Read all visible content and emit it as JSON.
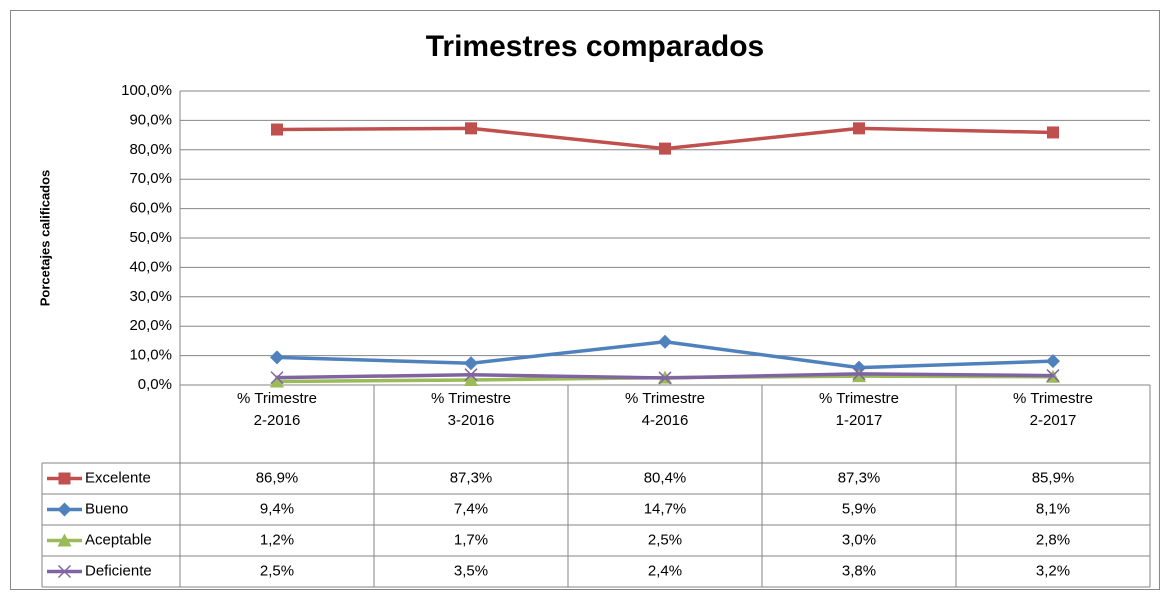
{
  "chart_data": {
    "type": "line",
    "title": "Trimestres comparados",
    "y_label": "Porcetajes calificados",
    "categories": [
      "% Trimestre 2-2016",
      "% Trimestre 3-2016",
      "% Trimestre 4-2016",
      "% Trimestre 1-2017",
      "% Trimestre 2-2017"
    ],
    "series": [
      {
        "name": "Excelente",
        "color": "#c0504d",
        "marker": "square",
        "values": [
          86.9,
          87.3,
          80.4,
          87.3,
          85.9
        ],
        "value_labels": [
          "86,9%",
          "87,3%",
          "80,4%",
          "87,3%",
          "85,9%"
        ]
      },
      {
        "name": "Bueno",
        "color": "#4f81bd",
        "marker": "diamond",
        "values": [
          9.4,
          7.4,
          14.7,
          5.9,
          8.1
        ],
        "value_labels": [
          "9,4%",
          "7,4%",
          "14,7%",
          "5,9%",
          "8,1%"
        ]
      },
      {
        "name": "Aceptable",
        "color": "#9bbb59",
        "marker": "triangle",
        "values": [
          1.2,
          1.7,
          2.5,
          3.0,
          2.8
        ],
        "value_labels": [
          "1,2%",
          "1,7%",
          "2,5%",
          "3,0%",
          "2,8%"
        ]
      },
      {
        "name": "Deficiente",
        "color": "#8064a2",
        "marker": "x",
        "values": [
          2.5,
          3.5,
          2.4,
          3.8,
          3.2
        ],
        "value_labels": [
          "2,5%",
          "3,5%",
          "2,4%",
          "3,8%",
          "3,2%"
        ]
      }
    ],
    "ylim": [
      0,
      100
    ],
    "yticks": [
      {
        "value": 0,
        "label": "0,0%"
      },
      {
        "value": 10,
        "label": "10,0%"
      },
      {
        "value": 20,
        "label": "20,0%"
      },
      {
        "value": 30,
        "label": "30,0%"
      },
      {
        "value": 40,
        "label": "40,0%"
      },
      {
        "value": 50,
        "label": "50,0%"
      },
      {
        "value": 60,
        "label": "60,0%"
      },
      {
        "value": 70,
        "label": "70,0%"
      },
      {
        "value": 80,
        "label": "80,0%"
      },
      {
        "value": 90,
        "label": "90,0%"
      },
      {
        "value": 100,
        "label": "100,0%"
      }
    ],
    "grid": true
  }
}
